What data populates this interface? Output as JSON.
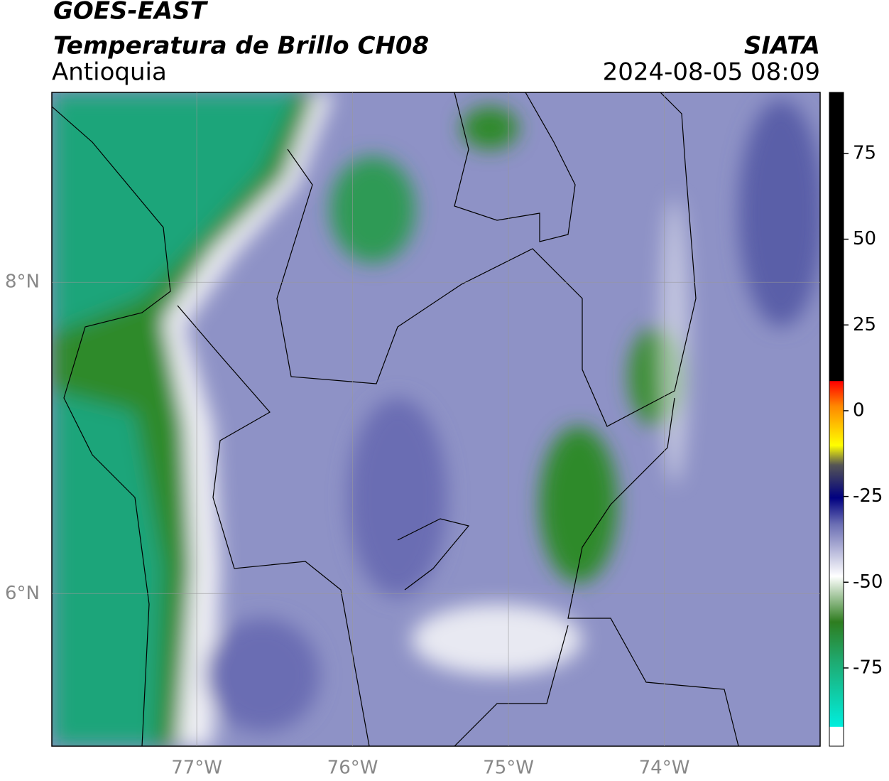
{
  "header": {
    "title": "GOES-EAST",
    "subtitle": "Temperatura de Brillo CH08",
    "region": "Antioquia",
    "source": "SIATA",
    "datetime": "2024-08-05 08:09"
  },
  "map": {
    "xlim": [
      -77.93,
      -73.0
    ],
    "ylim": [
      5.02,
      9.22
    ],
    "xticks": [
      {
        "value": -77,
        "label": "77°W"
      },
      {
        "value": -76,
        "label": "76°W"
      },
      {
        "value": -75,
        "label": "75°W"
      },
      {
        "value": -74,
        "label": "74°W"
      }
    ],
    "yticks": [
      {
        "value": 8,
        "label": "8°N"
      },
      {
        "value": 6,
        "label": "6°N"
      }
    ],
    "grid": true
  },
  "colorbar": {
    "lim": [
      -97.8,
      92.8
    ],
    "ticks": [
      75,
      50,
      25,
      0,
      -25,
      -50,
      -75
    ]
  }
}
